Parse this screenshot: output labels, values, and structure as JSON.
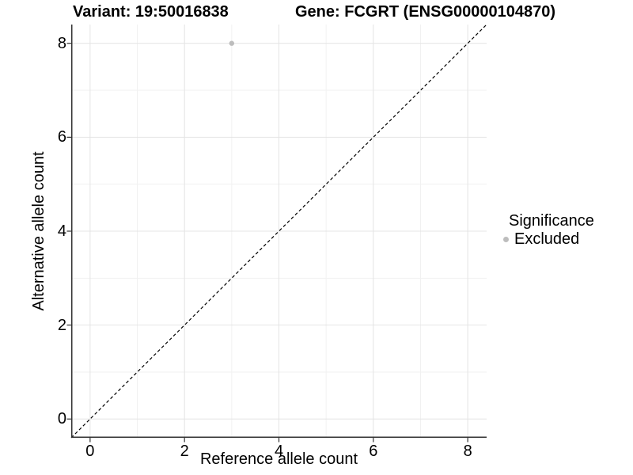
{
  "header": {
    "variant_title": "Variant: 19:50016838",
    "gene_title": "Gene: FCGRT (ENSG00000104870)"
  },
  "chart_data": {
    "type": "scatter",
    "xlabel": "Reference allele count",
    "ylabel": "Alternative allele count",
    "xlim": [
      -0.4,
      8.4
    ],
    "ylim": [
      -0.4,
      8.4
    ],
    "x_ticks": [
      0,
      2,
      4,
      6,
      8
    ],
    "y_ticks": [
      0,
      2,
      4,
      6,
      8
    ],
    "x_minor_ticks": [
      1,
      3,
      5,
      7
    ],
    "y_minor_ticks": [
      1,
      3,
      5,
      7
    ],
    "grid": "major+minor",
    "legend_position": "right",
    "series": [
      {
        "name": "Excluded",
        "color": "#bdbdbd",
        "point_radius": 3.2,
        "points": [
          [
            3,
            8
          ]
        ]
      }
    ],
    "reference_line": {
      "slope": 1,
      "intercept": 0,
      "style": "dashed",
      "color": "#000000"
    }
  },
  "legend": {
    "title": "Significance",
    "items": [
      {
        "label": "Excluded",
        "color": "#bdbdbd"
      }
    ]
  },
  "style": {
    "background": "#ffffff",
    "text_color": "#000000",
    "axis_line_color": "#333333",
    "tick_color": "#333333",
    "major_grid_color": "#e4e4e4",
    "minor_grid_color": "#f1f1f1"
  }
}
